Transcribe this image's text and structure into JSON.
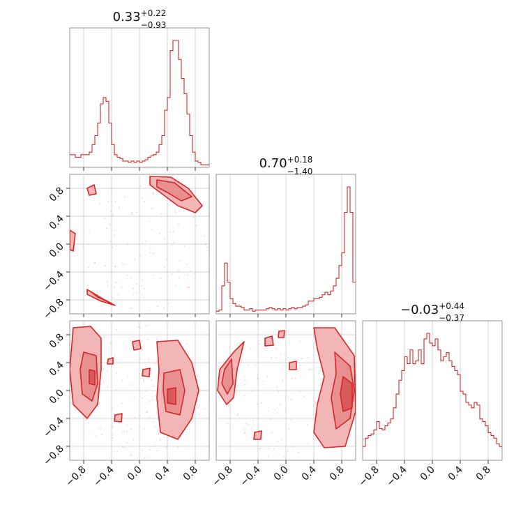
{
  "colors": {
    "accent": "#d62728",
    "fill_light": "#f2b6b6",
    "fill_mid": "#e88f8f",
    "fill_dark": "#d95a5a",
    "scatter": "#f0a8b0"
  },
  "chart_data": {
    "type": "corner",
    "titles": [
      {
        "main": "0.33",
        "sup": "+0.22",
        "sub": "−0.93"
      },
      {
        "main": "0.70",
        "sup": "+0.18",
        "sub": "−1.40"
      },
      {
        "main": "−0.03",
        "sup": "+0.44",
        "sub": "−0.37"
      }
    ],
    "axis_range": [
      -1.0,
      1.0
    ],
    "ticks": [
      -0.8,
      -0.4,
      0.0,
      0.4,
      0.8
    ],
    "tick_labels": [
      "−0.8",
      "−0.4",
      "0.0",
      "0.4",
      "0.8"
    ],
    "grid": true,
    "histograms": [
      {
        "name": "param-1",
        "bin_edges_range": [
          -1.0,
          1.0
        ],
        "counts": [
          0.1,
          0.1,
          0.08,
          0.08,
          0.1,
          0.1,
          0.1,
          0.12,
          0.18,
          0.25,
          0.35,
          0.5,
          0.55,
          0.52,
          0.35,
          0.18,
          0.1,
          0.08,
          0.07,
          0.05,
          0.05,
          0.04,
          0.05,
          0.04,
          0.05,
          0.04,
          0.05,
          0.06,
          0.08,
          0.09,
          0.1,
          0.12,
          0.18,
          0.25,
          0.45,
          0.55,
          0.92,
          1.0,
          1.0,
          0.85,
          0.7,
          0.58,
          0.42,
          0.25,
          0.12,
          0.05,
          0.04,
          0.02,
          0.02,
          0.02
        ]
      },
      {
        "name": "param-2",
        "bin_edges_range": [
          -1.0,
          1.0
        ],
        "counts": [
          0.02,
          0.03,
          0.22,
          0.4,
          0.25,
          0.12,
          0.08,
          0.06,
          0.06,
          0.05,
          0.03,
          0.03,
          0.04,
          0.02,
          0.03,
          0.03,
          0.03,
          0.03,
          0.04,
          0.05,
          0.04,
          0.03,
          0.04,
          0.03,
          0.04,
          0.03,
          0.04,
          0.05,
          0.04,
          0.05,
          0.05,
          0.06,
          0.07,
          0.1,
          0.1,
          0.12,
          0.12,
          0.13,
          0.15,
          0.17,
          0.15,
          0.18,
          0.22,
          0.28,
          0.38,
          0.48,
          0.8,
          1.0,
          0.8,
          0.25
        ]
      },
      {
        "name": "param-3",
        "bin_edges_range": [
          -1.0,
          1.0
        ],
        "counts": [
          0.1,
          0.16,
          0.18,
          0.19,
          0.22,
          0.28,
          0.23,
          0.22,
          0.25,
          0.27,
          0.3,
          0.38,
          0.48,
          0.58,
          0.65,
          0.75,
          0.7,
          0.8,
          0.7,
          0.72,
          0.8,
          0.7,
          0.88,
          0.92,
          0.85,
          0.83,
          0.88,
          0.8,
          0.72,
          0.75,
          0.78,
          0.72,
          0.68,
          0.65,
          0.62,
          0.5,
          0.48,
          0.42,
          0.4,
          0.38,
          0.42,
          0.4,
          0.3,
          0.28,
          0.25,
          0.2,
          0.18,
          0.16,
          0.12,
          0.1
        ]
      }
    ],
    "contour_panels": [
      {
        "name": "param-2-vs-param-1",
        "x_param": 1,
        "y_param": 2,
        "regions": [
          {
            "level": 1,
            "points": [
              [
                0.15,
                0.97
              ],
              [
                0.45,
                0.96
              ],
              [
                0.7,
                0.8
              ],
              [
                0.9,
                0.55
              ],
              [
                0.8,
                0.45
              ],
              [
                0.55,
                0.55
              ],
              [
                0.35,
                0.7
              ],
              [
                0.15,
                0.85
              ]
            ]
          },
          {
            "level": 2,
            "points": [
              [
                0.25,
                0.92
              ],
              [
                0.5,
                0.88
              ],
              [
                0.75,
                0.68
              ],
              [
                0.6,
                0.62
              ],
              [
                0.4,
                0.74
              ],
              [
                0.25,
                0.82
              ]
            ]
          },
          {
            "level": 1,
            "points": [
              [
                -0.75,
                -0.65
              ],
              [
                -0.55,
                -0.78
              ],
              [
                -0.35,
                -0.88
              ],
              [
                -0.55,
                -0.82
              ],
              [
                -0.75,
                -0.72
              ]
            ]
          },
          {
            "level": 2,
            "points": [
              [
                -0.7,
                -0.68
              ],
              [
                -0.5,
                -0.8
              ],
              [
                -0.4,
                -0.85
              ],
              [
                -0.6,
                -0.76
              ]
            ]
          },
          {
            "level": 1,
            "points": [
              [
                -1.0,
                0.2
              ],
              [
                -0.92,
                0.15
              ],
              [
                -0.95,
                -0.1
              ],
              [
                -1.0,
                -0.08
              ]
            ]
          },
          {
            "level": 1,
            "points": [
              [
                -0.75,
                0.8
              ],
              [
                -0.65,
                0.85
              ],
              [
                -0.62,
                0.72
              ],
              [
                -0.72,
                0.7
              ]
            ]
          }
        ]
      },
      {
        "name": "param-3-vs-param-1",
        "x_param": 1,
        "y_param": 3,
        "regions": [
          {
            "level": 1,
            "points": [
              [
                -0.95,
                0.9
              ],
              [
                -0.7,
                0.92
              ],
              [
                -0.55,
                0.75
              ],
              [
                -0.55,
                0.3
              ],
              [
                -0.6,
                -0.2
              ],
              [
                -0.75,
                -0.4
              ],
              [
                -0.95,
                -0.2
              ],
              [
                -1.0,
                0.3
              ]
            ]
          },
          {
            "level": 2,
            "points": [
              [
                -0.8,
                0.55
              ],
              [
                -0.62,
                0.5
              ],
              [
                -0.6,
                0.1
              ],
              [
                -0.68,
                -0.15
              ],
              [
                -0.82,
                -0.05
              ],
              [
                -0.85,
                0.3
              ]
            ]
          },
          {
            "level": 3,
            "points": [
              [
                -0.72,
                0.3
              ],
              [
                -0.64,
                0.28
              ],
              [
                -0.64,
                0.08
              ],
              [
                -0.72,
                0.1
              ]
            ]
          },
          {
            "level": 1,
            "points": [
              [
                0.25,
                0.7
              ],
              [
                0.55,
                0.72
              ],
              [
                0.75,
                0.4
              ],
              [
                0.85,
                0.0
              ],
              [
                0.75,
                -0.4
              ],
              [
                0.55,
                -0.7
              ],
              [
                0.3,
                -0.6
              ],
              [
                0.25,
                -0.1
              ],
              [
                0.28,
                0.3
              ]
            ]
          },
          {
            "level": 2,
            "points": [
              [
                0.35,
                0.25
              ],
              [
                0.58,
                0.3
              ],
              [
                0.65,
                0.0
              ],
              [
                0.58,
                -0.35
              ],
              [
                0.38,
                -0.3
              ],
              [
                0.34,
                0.0
              ]
            ]
          },
          {
            "level": 3,
            "points": [
              [
                0.4,
                0.02
              ],
              [
                0.52,
                0.04
              ],
              [
                0.52,
                -0.2
              ],
              [
                0.4,
                -0.18
              ]
            ]
          },
          {
            "level": 1,
            "points": [
              [
                -0.1,
                0.7
              ],
              [
                0.0,
                0.72
              ],
              [
                0.02,
                0.6
              ],
              [
                -0.08,
                0.58
              ]
            ]
          },
          {
            "level": 1,
            "points": [
              [
                -0.35,
                -0.35
              ],
              [
                -0.25,
                -0.33
              ],
              [
                -0.26,
                -0.45
              ],
              [
                -0.36,
                -0.44
              ]
            ]
          },
          {
            "level": 1,
            "points": [
              [
                0.05,
                0.3
              ],
              [
                0.15,
                0.32
              ],
              [
                0.14,
                0.2
              ],
              [
                0.04,
                0.21
              ]
            ]
          },
          {
            "level": 1,
            "points": [
              [
                -0.45,
                0.45
              ],
              [
                -0.38,
                0.47
              ],
              [
                -0.38,
                0.38
              ],
              [
                -0.46,
                0.38
              ]
            ]
          }
        ]
      },
      {
        "name": "param-3-vs-param-2",
        "x_param": 2,
        "y_param": 3,
        "regions": [
          {
            "level": 1,
            "points": [
              [
                -0.95,
                0.3
              ],
              [
                -0.75,
                0.55
              ],
              [
                -0.6,
                0.7
              ],
              [
                -0.7,
                0.3
              ],
              [
                -0.75,
                -0.1
              ],
              [
                -0.85,
                -0.2
              ],
              [
                -0.98,
                0.0
              ]
            ]
          },
          {
            "level": 2,
            "points": [
              [
                -0.88,
                0.3
              ],
              [
                -0.78,
                0.45
              ],
              [
                -0.76,
                0.1
              ],
              [
                -0.84,
                -0.05
              ],
              [
                -0.92,
                0.1
              ]
            ]
          },
          {
            "level": 1,
            "points": [
              [
                0.4,
                0.9
              ],
              [
                0.7,
                0.9
              ],
              [
                0.98,
                0.5
              ],
              [
                1.0,
                -0.3
              ],
              [
                0.85,
                -0.8
              ],
              [
                0.55,
                -0.82
              ],
              [
                0.4,
                -0.6
              ],
              [
                0.45,
                -0.2
              ],
              [
                0.55,
                0.2
              ],
              [
                0.45,
                0.6
              ]
            ]
          },
          {
            "level": 2,
            "points": [
              [
                0.7,
                0.55
              ],
              [
                0.92,
                0.35
              ],
              [
                0.98,
                0.0
              ],
              [
                0.92,
                -0.4
              ],
              [
                0.72,
                -0.55
              ],
              [
                0.65,
                -0.1
              ],
              [
                0.72,
                0.25
              ]
            ]
          },
          {
            "level": 3,
            "points": [
              [
                0.82,
                0.2
              ],
              [
                0.95,
                0.1
              ],
              [
                0.95,
                -0.25
              ],
              [
                0.82,
                -0.3
              ],
              [
                0.78,
                -0.05
              ]
            ]
          },
          {
            "level": 1,
            "points": [
              [
                -0.3,
                0.75
              ],
              [
                -0.2,
                0.78
              ],
              [
                -0.18,
                0.65
              ],
              [
                -0.3,
                0.64
              ]
            ]
          },
          {
            "level": 1,
            "points": [
              [
                0.05,
                0.4
              ],
              [
                0.15,
                0.42
              ],
              [
                0.15,
                0.3
              ],
              [
                0.05,
                0.3
              ]
            ]
          },
          {
            "level": 1,
            "points": [
              [
                -0.45,
                -0.6
              ],
              [
                -0.35,
                -0.58
              ],
              [
                -0.36,
                -0.7
              ],
              [
                -0.46,
                -0.7
              ]
            ]
          },
          {
            "level": 1,
            "points": [
              [
                -0.1,
                0.85
              ],
              [
                -0.02,
                0.86
              ],
              [
                -0.03,
                0.76
              ],
              [
                -0.11,
                0.76
              ]
            ]
          }
        ]
      }
    ]
  }
}
